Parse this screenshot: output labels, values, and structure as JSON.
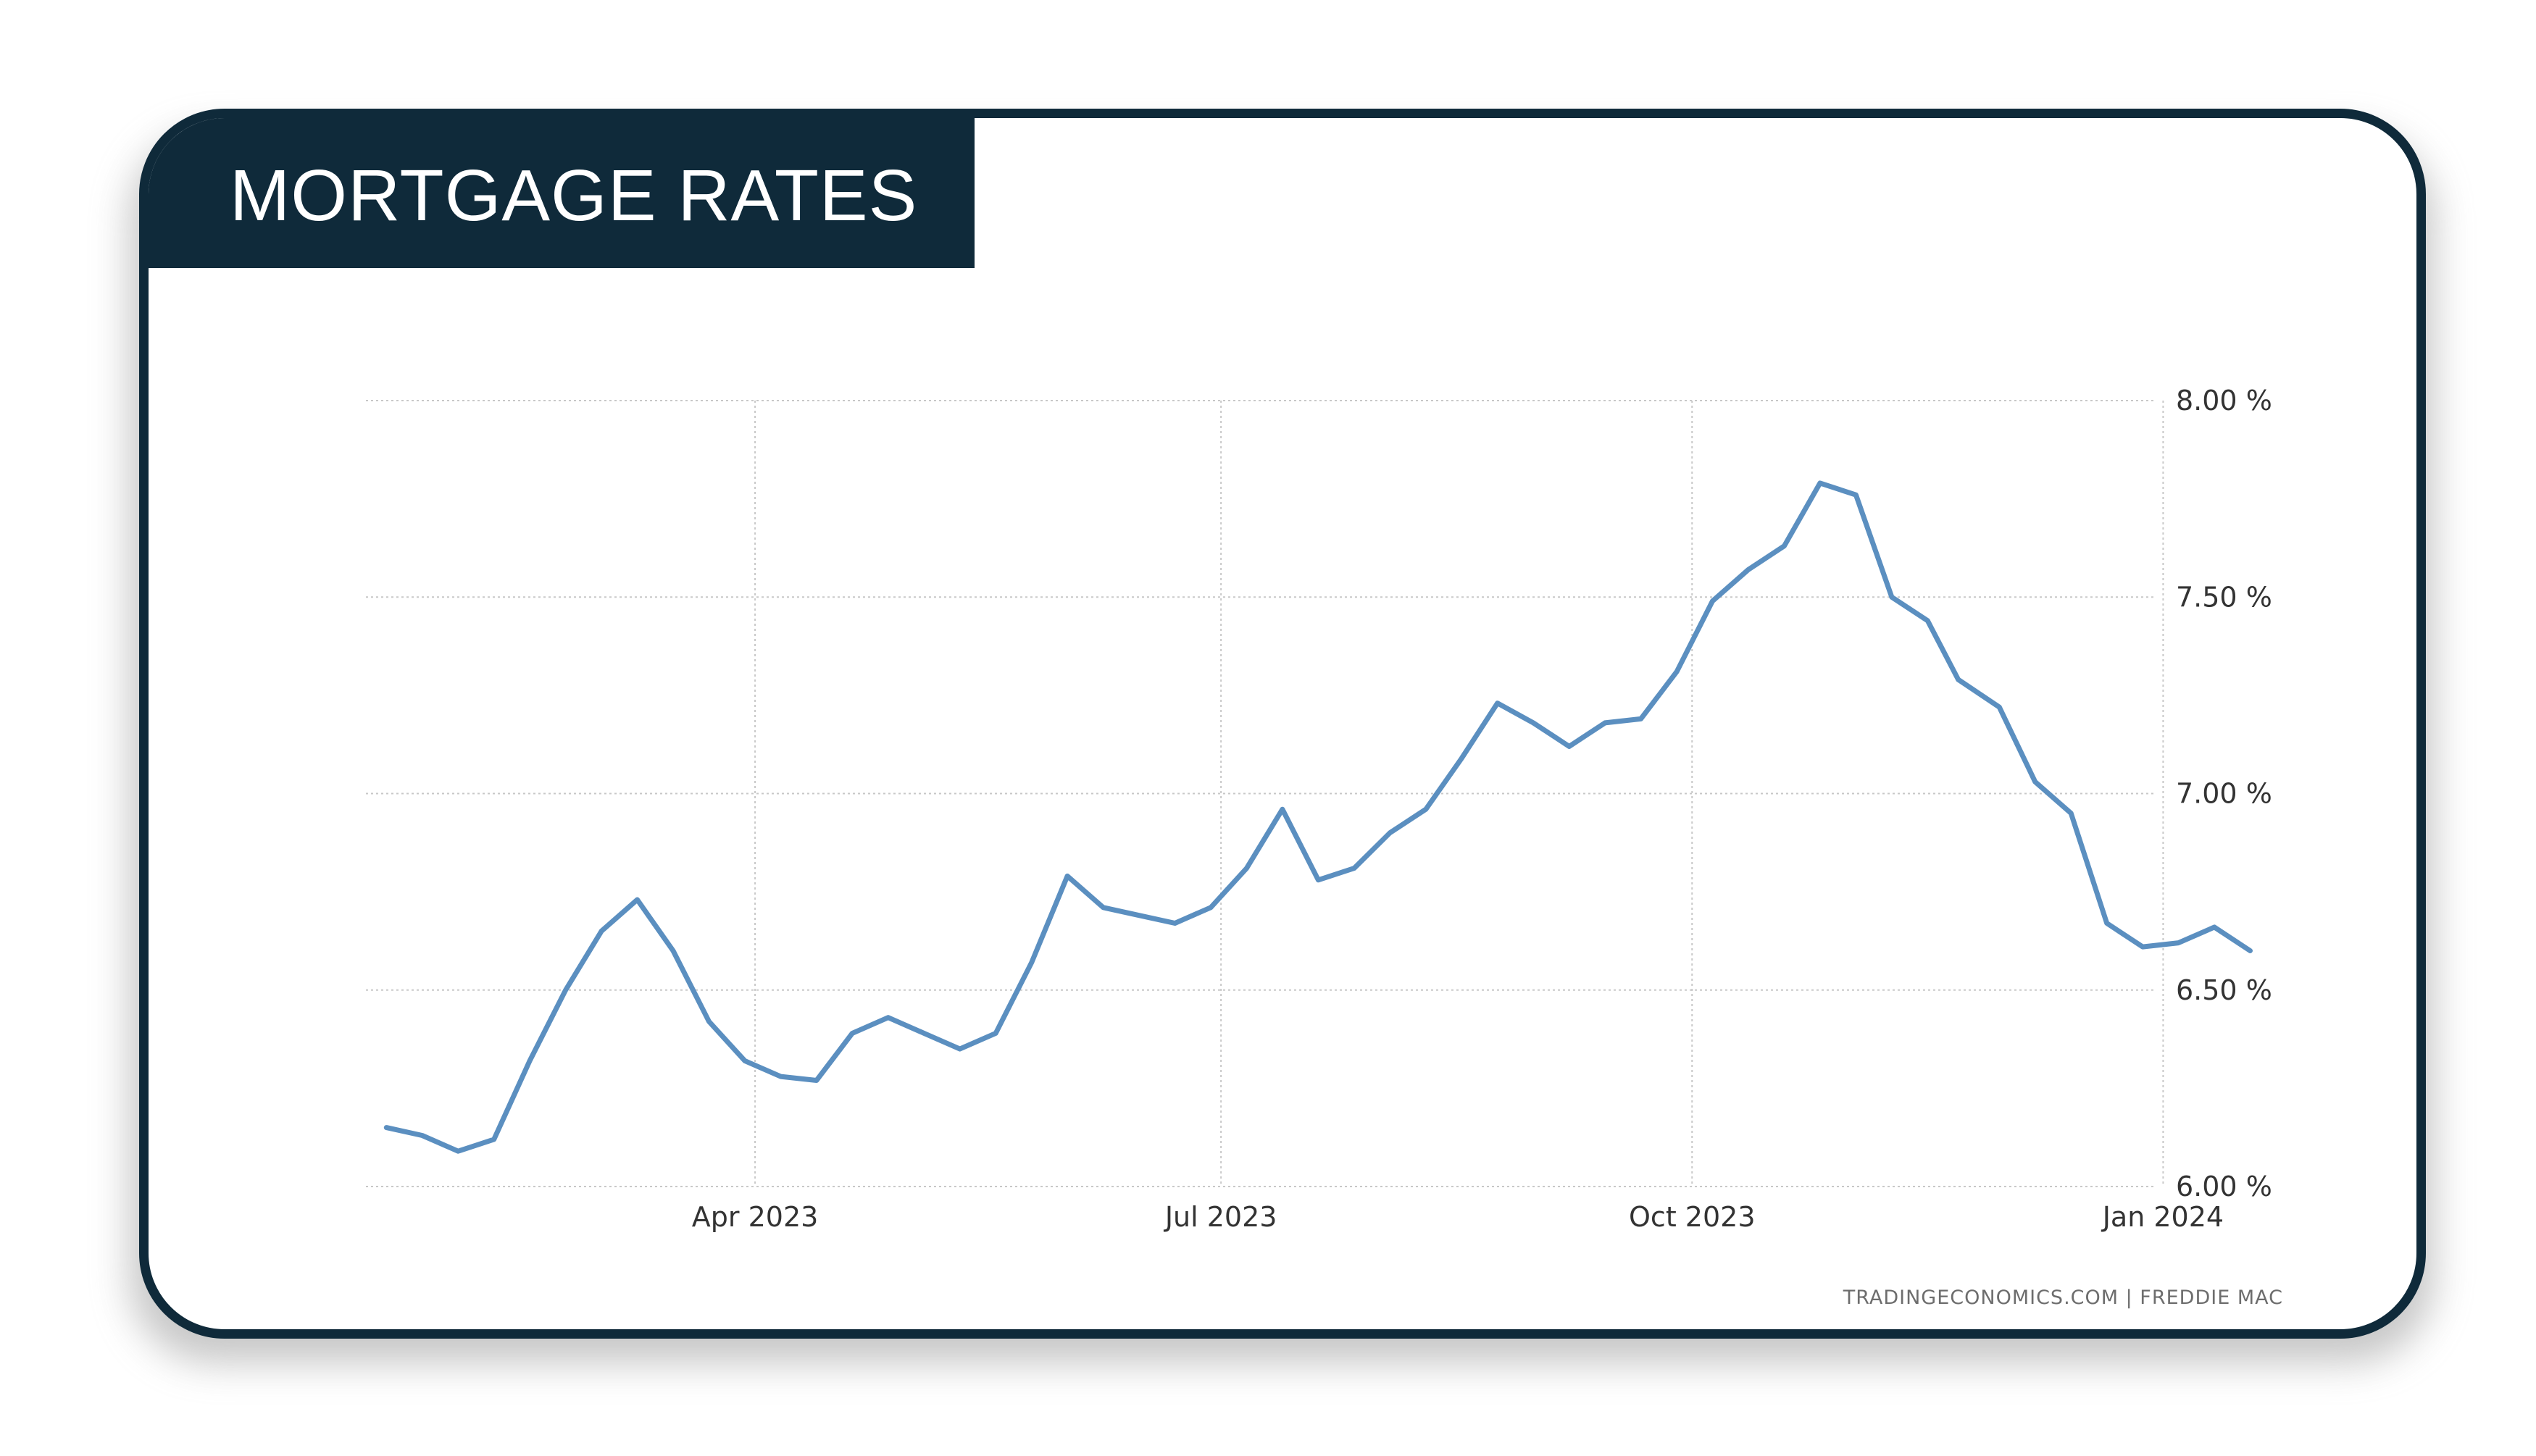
{
  "header": {
    "title": "MORTGAGE RATES"
  },
  "source_text": "TRADINGECONOMICS.COM | FREDDIE MAC",
  "colors": {
    "frame": "#0f2a3a",
    "line": "#5b8fc0",
    "grid": "#c8c8c8"
  },
  "chart_data": {
    "type": "line",
    "title": "",
    "xlabel": "",
    "ylabel": "",
    "ylim": [
      6.0,
      8.0
    ],
    "y_ticks": [
      8.0,
      7.5,
      7.0,
      6.5,
      6.0
    ],
    "y_tick_labels": [
      "8.00 %",
      "7.50 %",
      "7.00 %",
      "6.50 %",
      "6.00 %"
    ],
    "y_axis_side": "right",
    "x_range": [
      "2023-01-15",
      "2024-01-25"
    ],
    "x_ticks": [
      "2023-04-01",
      "2023-07-01",
      "2023-10-01",
      "2024-01-01"
    ],
    "x_tick_labels": [
      "Apr 2023",
      "Jul 2023",
      "Oct 2023",
      "Jan 2024"
    ],
    "grid": true,
    "legend": "none",
    "x": [
      "2023-01-19",
      "2023-01-26",
      "2023-02-02",
      "2023-02-09",
      "2023-02-16",
      "2023-02-23",
      "2023-03-02",
      "2023-03-09",
      "2023-03-16",
      "2023-03-23",
      "2023-03-30",
      "2023-04-06",
      "2023-04-13",
      "2023-04-20",
      "2023-04-27",
      "2023-05-04",
      "2023-05-11",
      "2023-05-18",
      "2023-05-25",
      "2023-06-01",
      "2023-06-08",
      "2023-06-15",
      "2023-06-22",
      "2023-06-29",
      "2023-07-06",
      "2023-07-13",
      "2023-07-20",
      "2023-07-27",
      "2023-08-03",
      "2023-08-10",
      "2023-08-17",
      "2023-08-24",
      "2023-08-31",
      "2023-09-07",
      "2023-09-14",
      "2023-09-21",
      "2023-09-28",
      "2023-10-05",
      "2023-10-12",
      "2023-10-19",
      "2023-10-26",
      "2023-11-02",
      "2023-11-09",
      "2023-11-16",
      "2023-11-22",
      "2023-11-30",
      "2023-12-07",
      "2023-12-14",
      "2023-12-21",
      "2023-12-28",
      "2024-01-04",
      "2024-01-11",
      "2024-01-18"
    ],
    "series": [
      {
        "values": [
          6.15,
          6.13,
          6.09,
          6.12,
          6.32,
          6.5,
          6.65,
          6.73,
          6.6,
          6.42,
          6.32,
          6.28,
          6.27,
          6.39,
          6.43,
          6.39,
          6.35,
          6.39,
          6.57,
          6.79,
          6.71,
          6.69,
          6.67,
          6.71,
          6.81,
          6.96,
          6.78,
          6.81,
          6.9,
          6.96,
          7.09,
          7.23,
          7.18,
          7.12,
          7.18,
          7.19,
          7.31,
          7.49,
          7.57,
          7.63,
          7.79,
          7.76,
          7.5,
          7.44,
          7.29,
          7.22,
          7.03,
          6.95,
          6.67,
          6.61,
          6.62,
          6.66,
          6.6
        ]
      }
    ]
  }
}
